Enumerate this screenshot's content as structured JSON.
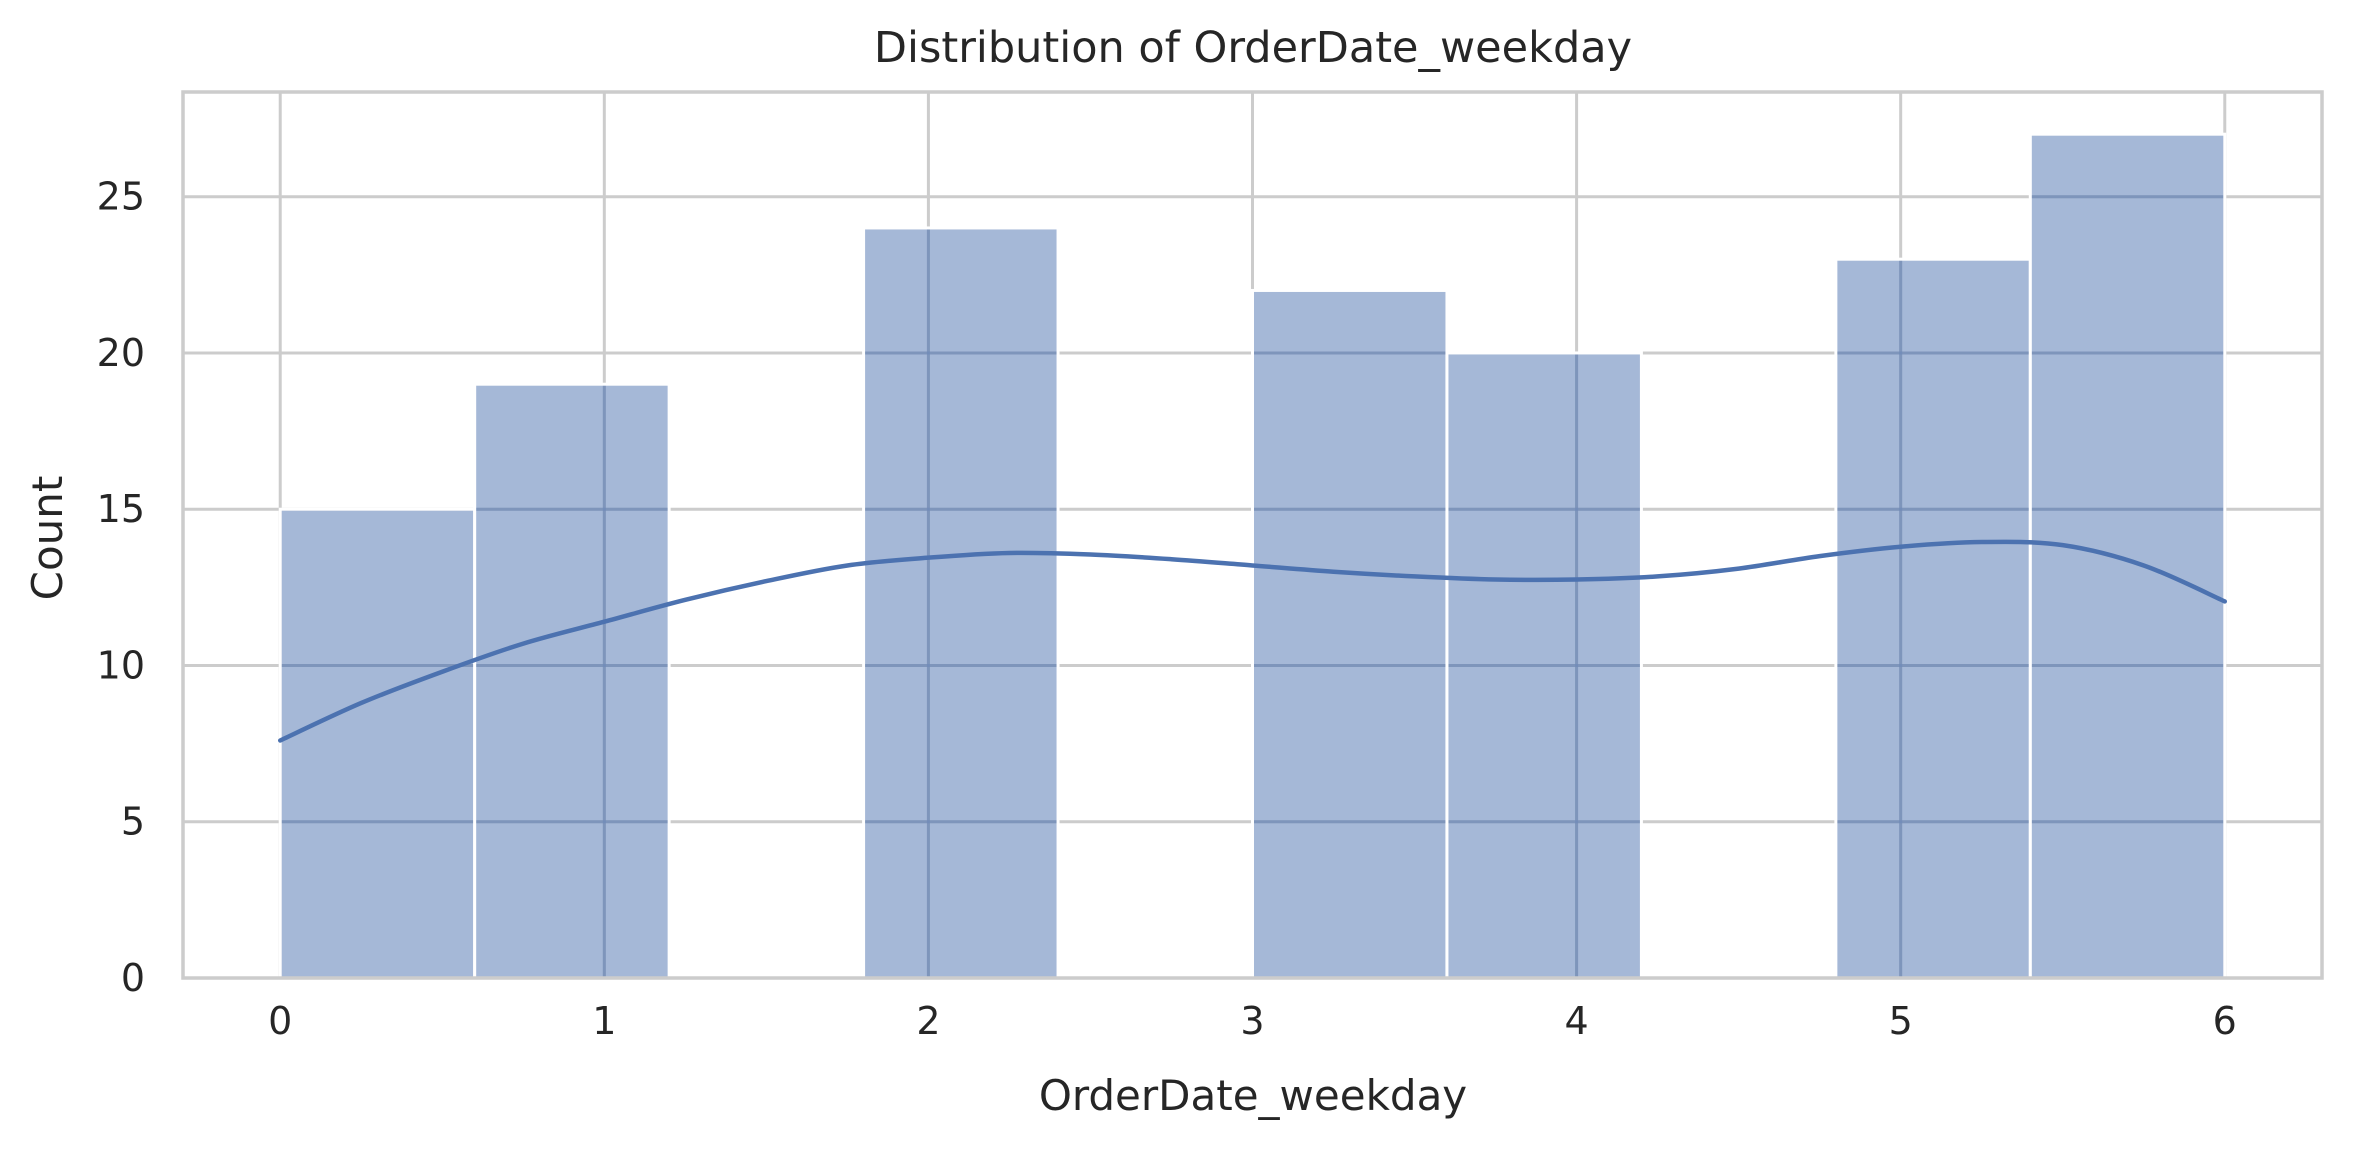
{
  "chart_data": {
    "type": "bar",
    "title": "Distribution of OrderDate_weekday",
    "xlabel": "OrderDate_weekday",
    "ylabel": "Count",
    "xlim": [
      -0.3,
      6.3
    ],
    "ylim": [
      0,
      28.35
    ],
    "xticks": [
      0,
      1,
      2,
      3,
      4,
      5,
      6
    ],
    "xtick_labels": [
      "0",
      "1",
      "2",
      "3",
      "4",
      "5",
      "6"
    ],
    "yticks": [
      0,
      5,
      10,
      15,
      20,
      25
    ],
    "ytick_labels": [
      "0",
      "5",
      "10",
      "15",
      "20",
      "25"
    ],
    "grid": true,
    "bins": [
      {
        "x0": 0.0,
        "x1": 0.6,
        "count": 15
      },
      {
        "x0": 0.6,
        "x1": 1.2,
        "count": 19
      },
      {
        "x0": 1.2,
        "x1": 1.8,
        "count": 0
      },
      {
        "x0": 1.8,
        "x1": 2.4,
        "count": 24
      },
      {
        "x0": 2.4,
        "x1": 3.0,
        "count": 0
      },
      {
        "x0": 3.0,
        "x1": 3.6,
        "count": 22
      },
      {
        "x0": 3.6,
        "x1": 4.2,
        "count": 20
      },
      {
        "x0": 4.2,
        "x1": 4.8,
        "count": 0
      },
      {
        "x0": 4.8,
        "x1": 5.4,
        "count": 23
      },
      {
        "x0": 5.4,
        "x1": 6.0,
        "count": 27
      }
    ],
    "kde": {
      "x": [
        0,
        0.25,
        0.5,
        0.75,
        1.0,
        1.25,
        1.5,
        1.75,
        2.0,
        2.25,
        2.5,
        2.75,
        3.0,
        3.25,
        3.5,
        3.75,
        4.0,
        4.25,
        4.5,
        4.75,
        5.0,
        5.25,
        5.5,
        5.75,
        6.0
      ],
      "y": [
        7.6,
        8.8,
        9.8,
        10.7,
        11.4,
        12.1,
        12.7,
        13.2,
        13.45,
        13.6,
        13.55,
        13.4,
        13.2,
        13.0,
        12.85,
        12.75,
        12.75,
        12.85,
        13.1,
        13.5,
        13.8,
        13.95,
        13.85,
        13.2,
        12.05
      ]
    },
    "colors": {
      "bar_fill": "#4c72b0",
      "bar_opacity": 0.5,
      "kde_line": "#4c72b0",
      "grid": "#cccccc",
      "spine": "#cccccc",
      "text": "#262626",
      "background": "#ffffff"
    }
  }
}
